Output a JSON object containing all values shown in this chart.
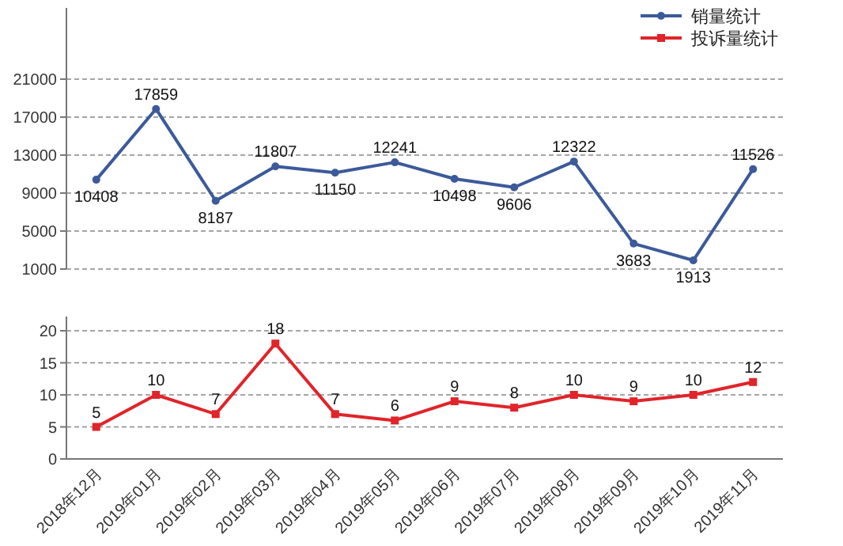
{
  "chart_data": [
    {
      "type": "line",
      "categories": [
        null,
        null,
        null,
        null,
        null,
        null,
        null,
        null,
        null,
        null,
        null,
        null
      ],
      "series": [
        {
          "name": "销量统计",
          "color": "#3c5a9a",
          "values": [
            10408,
            17859,
            8187,
            11807,
            11150,
            12241,
            10498,
            9606,
            12322,
            3683,
            1913,
            11526
          ]
        }
      ],
      "ylim": [
        1000,
        28500
      ],
      "yticks": [
        1000,
        5000,
        9000,
        13000,
        17000,
        21000
      ],
      "grid": "y",
      "legend": "top right",
      "marker": "circle",
      "data_labels": true,
      "tick_labels": "y"
    },
    {
      "type": "line",
      "categories": [
        "2018年12月",
        "2019年01月",
        "2019年02月",
        "2019年03月",
        "2019年04月",
        "2019年05月",
        "2019年06月",
        "2019年07月",
        "2019年08月",
        "2019年09月",
        "2019年10月",
        "2019年11月"
      ],
      "series": [
        {
          "name": "投诉量统计",
          "color": "#e0242a",
          "values": [
            5,
            10,
            7,
            18,
            7,
            6,
            9,
            8,
            10,
            9,
            10,
            12
          ]
        }
      ],
      "ylim": [
        0,
        20
      ],
      "yticks": [
        0,
        5,
        10,
        15,
        20
      ],
      "grid": "y",
      "legend": "top right",
      "marker": "square",
      "data_labels": true
    }
  ]
}
